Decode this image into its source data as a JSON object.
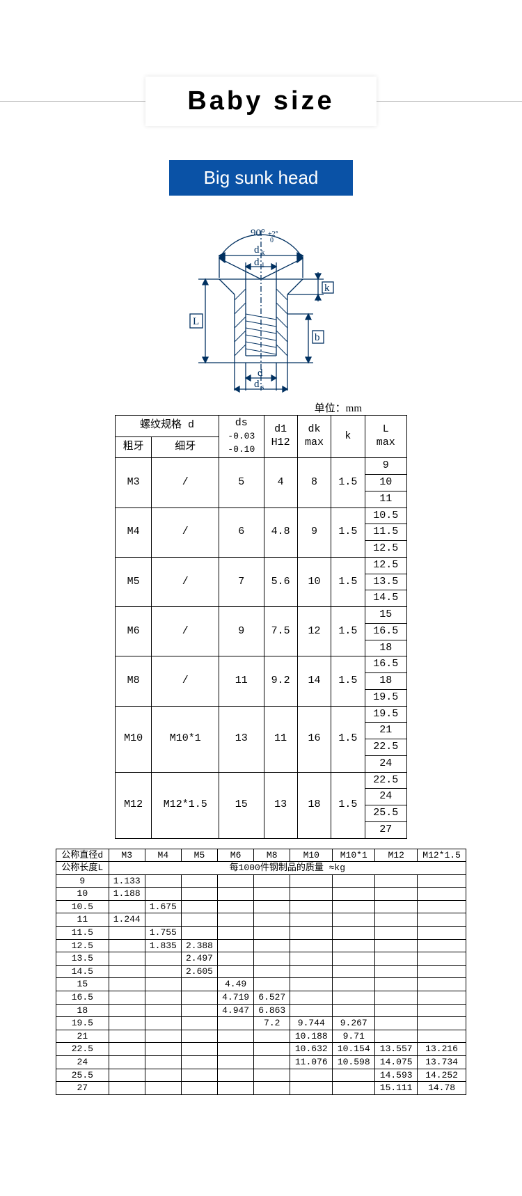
{
  "title": "Baby size",
  "subtitle": "Big sunk head",
  "unit_label": "单位：mm",
  "diagram": {
    "angle": "90°",
    "labels": [
      "dk",
      "d1",
      "k",
      "b",
      "L",
      "d",
      "ds"
    ]
  },
  "spec_table": {
    "header_top": "螺纹规格 d",
    "header_coarse": "粗牙",
    "header_fine": "细牙",
    "header_ds": "ds",
    "header_ds_sub": "-0.03\n-0.10",
    "header_d1": "d1\nH12",
    "header_dk": "dk\nmax",
    "header_k": "k",
    "header_L": "L\nmax",
    "rows": [
      {
        "coarse": "M3",
        "fine": "/",
        "ds": "5",
        "d1": "4",
        "dk": "8",
        "k": "1.5",
        "L": [
          "9",
          "10",
          "11"
        ]
      },
      {
        "coarse": "M4",
        "fine": "/",
        "ds": "6",
        "d1": "4.8",
        "dk": "9",
        "k": "1.5",
        "L": [
          "10.5",
          "11.5",
          "12.5"
        ]
      },
      {
        "coarse": "M5",
        "fine": "/",
        "ds": "7",
        "d1": "5.6",
        "dk": "10",
        "k": "1.5",
        "L": [
          "12.5",
          "13.5",
          "14.5"
        ]
      },
      {
        "coarse": "M6",
        "fine": "/",
        "ds": "9",
        "d1": "7.5",
        "dk": "12",
        "k": "1.5",
        "L": [
          "15",
          "16.5",
          "18"
        ]
      },
      {
        "coarse": "M8",
        "fine": "/",
        "ds": "11",
        "d1": "9.2",
        "dk": "14",
        "k": "1.5",
        "L": [
          "16.5",
          "18",
          "19.5"
        ]
      },
      {
        "coarse": "M10",
        "fine": "M10*1",
        "ds": "13",
        "d1": "11",
        "dk": "16",
        "k": "1.5",
        "L": [
          "19.5",
          "21",
          "22.5",
          "24"
        ]
      },
      {
        "coarse": "M12",
        "fine": "M12*1.5",
        "ds": "15",
        "d1": "13",
        "dk": "18",
        "k": "1.5",
        "L": [
          "22.5",
          "24",
          "25.5",
          "27"
        ]
      }
    ]
  },
  "weight_table": {
    "row_header_d": "公称直径d",
    "row_header_L": "公称长度L",
    "merged_title": "每1000件钢制品的质量  ≈kg",
    "columns": [
      "M3",
      "M4",
      "M5",
      "M6",
      "M8",
      "M10",
      "M10*1",
      "M12",
      "M12*1.5"
    ],
    "rows": [
      {
        "L": "9",
        "v": [
          "1.133",
          "",
          "",
          "",
          "",
          "",
          "",
          "",
          ""
        ]
      },
      {
        "L": "10",
        "v": [
          "1.188",
          "",
          "",
          "",
          "",
          "",
          "",
          "",
          ""
        ]
      },
      {
        "L": "10.5",
        "v": [
          "",
          "1.675",
          "",
          "",
          "",
          "",
          "",
          "",
          ""
        ]
      },
      {
        "L": "11",
        "v": [
          "1.244",
          "",
          "",
          "",
          "",
          "",
          "",
          "",
          ""
        ]
      },
      {
        "L": "11.5",
        "v": [
          "",
          "1.755",
          "",
          "",
          "",
          "",
          "",
          "",
          ""
        ]
      },
      {
        "L": "12.5",
        "v": [
          "",
          "1.835",
          "2.388",
          "",
          "",
          "",
          "",
          "",
          ""
        ]
      },
      {
        "L": "13.5",
        "v": [
          "",
          "",
          "2.497",
          "",
          "",
          "",
          "",
          "",
          ""
        ]
      },
      {
        "L": "14.5",
        "v": [
          "",
          "",
          "2.605",
          "",
          "",
          "",
          "",
          "",
          ""
        ]
      },
      {
        "L": "15",
        "v": [
          "",
          "",
          "",
          "4.49",
          "",
          "",
          "",
          "",
          ""
        ]
      },
      {
        "L": "16.5",
        "v": [
          "",
          "",
          "",
          "4.719",
          "6.527",
          "",
          "",
          "",
          ""
        ]
      },
      {
        "L": "18",
        "v": [
          "",
          "",
          "",
          "4.947",
          "6.863",
          "",
          "",
          "",
          ""
        ]
      },
      {
        "L": "19.5",
        "v": [
          "",
          "",
          "",
          "",
          "7.2",
          "9.744",
          "9.267",
          "",
          ""
        ]
      },
      {
        "L": "21",
        "v": [
          "",
          "",
          "",
          "",
          "",
          "10.188",
          "9.71",
          "",
          ""
        ]
      },
      {
        "L": "22.5",
        "v": [
          "",
          "",
          "",
          "",
          "",
          "10.632",
          "10.154",
          "13.557",
          "13.216"
        ]
      },
      {
        "L": "24",
        "v": [
          "",
          "",
          "",
          "",
          "",
          "11.076",
          "10.598",
          "14.075",
          "13.734"
        ]
      },
      {
        "L": "25.5",
        "v": [
          "",
          "",
          "",
          "",
          "",
          "",
          "",
          "14.593",
          "14.252"
        ]
      },
      {
        "L": "27",
        "v": [
          "",
          "",
          "",
          "",
          "",
          "",
          "",
          "15.111",
          "14.78"
        ]
      }
    ]
  }
}
